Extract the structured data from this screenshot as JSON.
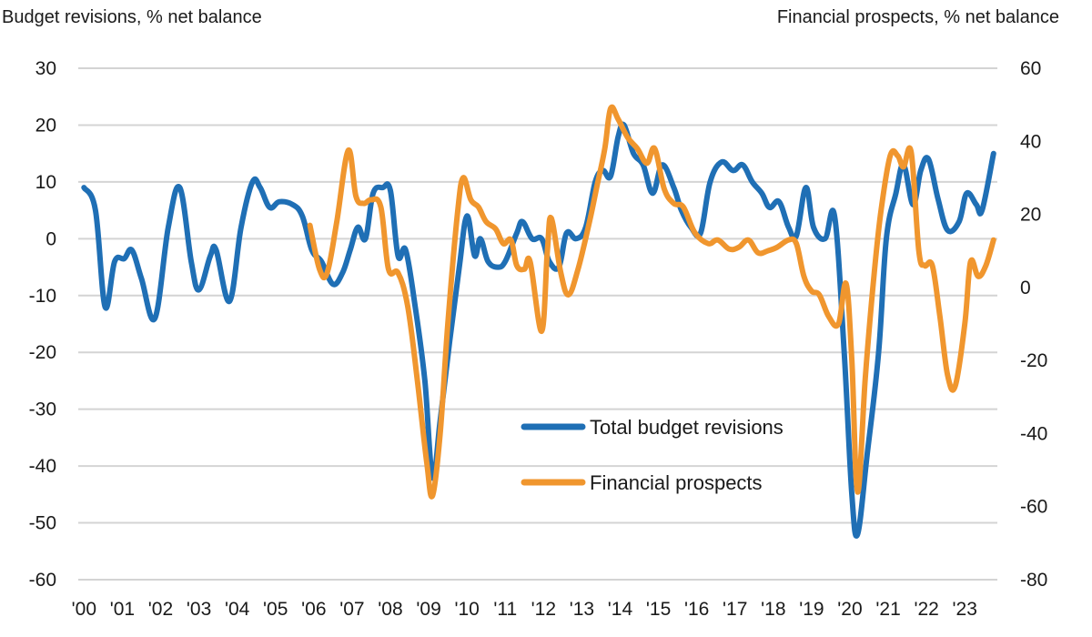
{
  "chart_data": {
    "type": "line",
    "title": "",
    "left_axis": {
      "label": "Budget revisions, % net balance",
      "ylim": [
        -60,
        30
      ],
      "ticks": [
        30,
        20,
        10,
        0,
        -10,
        -20,
        -30,
        -40,
        -50,
        -60
      ]
    },
    "right_axis": {
      "label": "Financial prospects, % net balance",
      "ylim": [
        -80,
        60
      ],
      "ticks": [
        60,
        40,
        20,
        0,
        -20,
        -40,
        -60,
        -80
      ]
    },
    "x_axis": {
      "label": "",
      "xlim": [
        1999.85,
        2023.85
      ],
      "tick_labels": [
        "'00",
        "'01",
        "'02",
        "'03",
        "'04",
        "'05",
        "'06",
        "'07",
        "'08",
        "'09",
        "'10",
        "'11",
        "'12",
        "'13",
        "'14",
        "'15",
        "'16",
        "'17",
        "'18",
        "'19",
        "'20",
        "'21",
        "'22",
        "'23"
      ],
      "tick_years": [
        2000,
        2001,
        2002,
        2003,
        2004,
        2005,
        2006,
        2007,
        2008,
        2009,
        2010,
        2011,
        2012,
        2013,
        2014,
        2015,
        2016,
        2017,
        2018,
        2019,
        2020,
        2021,
        2022,
        2023
      ]
    },
    "grid": true,
    "legend": {
      "placement": "center-bottom",
      "entries": [
        "Total budget revisions",
        "Financial prospects"
      ]
    },
    "series": [
      {
        "name": "Total budget revisions",
        "axis": "left",
        "color": "#1f6fb5",
        "points": [
          [
            2000.0,
            9
          ],
          [
            2000.3,
            5
          ],
          [
            2000.55,
            -12
          ],
          [
            2000.8,
            -4
          ],
          [
            2001.05,
            -3.5
          ],
          [
            2001.25,
            -2
          ],
          [
            2001.5,
            -7
          ],
          [
            2001.85,
            -14
          ],
          [
            2002.2,
            2
          ],
          [
            2002.5,
            9
          ],
          [
            2002.8,
            -4
          ],
          [
            2003.0,
            -9
          ],
          [
            2003.3,
            -3
          ],
          [
            2003.45,
            -2
          ],
          [
            2003.8,
            -11
          ],
          [
            2004.1,
            2
          ],
          [
            2004.4,
            10
          ],
          [
            2004.6,
            9
          ],
          [
            2004.85,
            5.5
          ],
          [
            2005.1,
            6.5
          ],
          [
            2005.45,
            6
          ],
          [
            2005.7,
            4
          ],
          [
            2005.95,
            -2
          ],
          [
            2006.2,
            -4
          ],
          [
            2006.5,
            -8
          ],
          [
            2006.75,
            -6
          ],
          [
            2006.95,
            -2
          ],
          [
            2007.15,
            2
          ],
          [
            2007.35,
            0
          ],
          [
            2007.55,
            8
          ],
          [
            2007.8,
            9
          ],
          [
            2008.0,
            8.5
          ],
          [
            2008.2,
            -3
          ],
          [
            2008.4,
            -2
          ],
          [
            2008.65,
            -12
          ],
          [
            2008.9,
            -25
          ],
          [
            2009.1,
            -42
          ],
          [
            2009.3,
            -32
          ],
          [
            2009.55,
            -18
          ],
          [
            2009.8,
            -5
          ],
          [
            2010.0,
            4
          ],
          [
            2010.2,
            -3
          ],
          [
            2010.35,
            0
          ],
          [
            2010.55,
            -4
          ],
          [
            2010.8,
            -5
          ],
          [
            2011.0,
            -4
          ],
          [
            2011.3,
            1
          ],
          [
            2011.45,
            3
          ],
          [
            2011.7,
            0
          ],
          [
            2011.95,
            0
          ],
          [
            2012.15,
            -4
          ],
          [
            2012.4,
            -5
          ],
          [
            2012.6,
            1
          ],
          [
            2012.85,
            0
          ],
          [
            2013.1,
            2
          ],
          [
            2013.35,
            10
          ],
          [
            2013.55,
            12
          ],
          [
            2013.75,
            11
          ],
          [
            2013.95,
            18
          ],
          [
            2014.1,
            20
          ],
          [
            2014.35,
            15
          ],
          [
            2014.6,
            13
          ],
          [
            2014.85,
            8
          ],
          [
            2015.1,
            13
          ],
          [
            2015.4,
            9
          ],
          [
            2015.6,
            5
          ],
          [
            2015.85,
            2
          ],
          [
            2016.1,
            1
          ],
          [
            2016.35,
            10
          ],
          [
            2016.65,
            13.5
          ],
          [
            2016.95,
            12
          ],
          [
            2017.2,
            13
          ],
          [
            2017.45,
            10
          ],
          [
            2017.7,
            8
          ],
          [
            2017.9,
            5.5
          ],
          [
            2018.15,
            6.5
          ],
          [
            2018.4,
            2
          ],
          [
            2018.6,
            0.5
          ],
          [
            2018.85,
            9
          ],
          [
            2019.05,
            2
          ],
          [
            2019.35,
            0
          ],
          [
            2019.6,
            4
          ],
          [
            2019.85,
            -20
          ],
          [
            2020.05,
            -45
          ],
          [
            2020.2,
            -52
          ],
          [
            2020.45,
            -38
          ],
          [
            2020.75,
            -20
          ],
          [
            2020.95,
            0
          ],
          [
            2021.2,
            8
          ],
          [
            2021.4,
            13
          ],
          [
            2021.65,
            6
          ],
          [
            2021.85,
            12
          ],
          [
            2022.05,
            14
          ],
          [
            2022.3,
            7
          ],
          [
            2022.55,
            1.5
          ],
          [
            2022.85,
            3
          ],
          [
            2023.05,
            8
          ],
          [
            2023.3,
            6
          ],
          [
            2023.45,
            5
          ],
          [
            2023.75,
            15
          ]
        ]
      },
      {
        "name": "Financial prospects",
        "axis": "right",
        "color": "#f0962e",
        "points": [
          [
            2005.9,
            17
          ],
          [
            2006.15,
            5
          ],
          [
            2006.35,
            4
          ],
          [
            2006.6,
            18
          ],
          [
            2006.9,
            37.5
          ],
          [
            2007.1,
            25
          ],
          [
            2007.3,
            23
          ],
          [
            2007.5,
            24
          ],
          [
            2007.75,
            22
          ],
          [
            2007.95,
            5
          ],
          [
            2008.2,
            4
          ],
          [
            2008.45,
            -5
          ],
          [
            2008.7,
            -25
          ],
          [
            2008.95,
            -48
          ],
          [
            2009.1,
            -57
          ],
          [
            2009.3,
            -40
          ],
          [
            2009.5,
            -10
          ],
          [
            2009.75,
            20
          ],
          [
            2009.9,
            30
          ],
          [
            2010.1,
            24
          ],
          [
            2010.3,
            22
          ],
          [
            2010.5,
            18
          ],
          [
            2010.75,
            16
          ],
          [
            2010.95,
            12
          ],
          [
            2011.15,
            13
          ],
          [
            2011.3,
            6
          ],
          [
            2011.5,
            5
          ],
          [
            2011.65,
            7
          ],
          [
            2011.95,
            -12
          ],
          [
            2012.1,
            10
          ],
          [
            2012.2,
            19
          ],
          [
            2012.45,
            4
          ],
          [
            2012.65,
            -2
          ],
          [
            2012.9,
            5
          ],
          [
            2013.2,
            18
          ],
          [
            2013.4,
            28
          ],
          [
            2013.6,
            38
          ],
          [
            2013.75,
            49
          ],
          [
            2013.95,
            46
          ],
          [
            2014.2,
            41
          ],
          [
            2014.45,
            38
          ],
          [
            2014.7,
            34
          ],
          [
            2014.9,
            38
          ],
          [
            2015.15,
            27
          ],
          [
            2015.4,
            23
          ],
          [
            2015.65,
            22
          ],
          [
            2015.95,
            15
          ],
          [
            2016.3,
            12
          ],
          [
            2016.55,
            13
          ],
          [
            2016.85,
            10.5
          ],
          [
            2017.1,
            11
          ],
          [
            2017.35,
            13
          ],
          [
            2017.6,
            9.5
          ],
          [
            2017.85,
            10
          ],
          [
            2018.1,
            11
          ],
          [
            2018.4,
            13
          ],
          [
            2018.6,
            12
          ],
          [
            2018.8,
            3
          ],
          [
            2019.0,
            -1
          ],
          [
            2019.2,
            -2
          ],
          [
            2019.45,
            -8
          ],
          [
            2019.7,
            -10
          ],
          [
            2019.9,
            1
          ],
          [
            2020.05,
            -20
          ],
          [
            2020.2,
            -56
          ],
          [
            2020.4,
            -25
          ],
          [
            2020.6,
            0
          ],
          [
            2020.8,
            20
          ],
          [
            2021.05,
            36
          ],
          [
            2021.25,
            36
          ],
          [
            2021.4,
            33
          ],
          [
            2021.6,
            37
          ],
          [
            2021.8,
            10
          ],
          [
            2021.95,
            6
          ],
          [
            2022.15,
            6
          ],
          [
            2022.35,
            -8
          ],
          [
            2022.55,
            -24
          ],
          [
            2022.75,
            -27
          ],
          [
            2023.0,
            -10
          ],
          [
            2023.15,
            7
          ],
          [
            2023.35,
            3
          ],
          [
            2023.55,
            6
          ],
          [
            2023.75,
            13
          ]
        ]
      }
    ]
  }
}
